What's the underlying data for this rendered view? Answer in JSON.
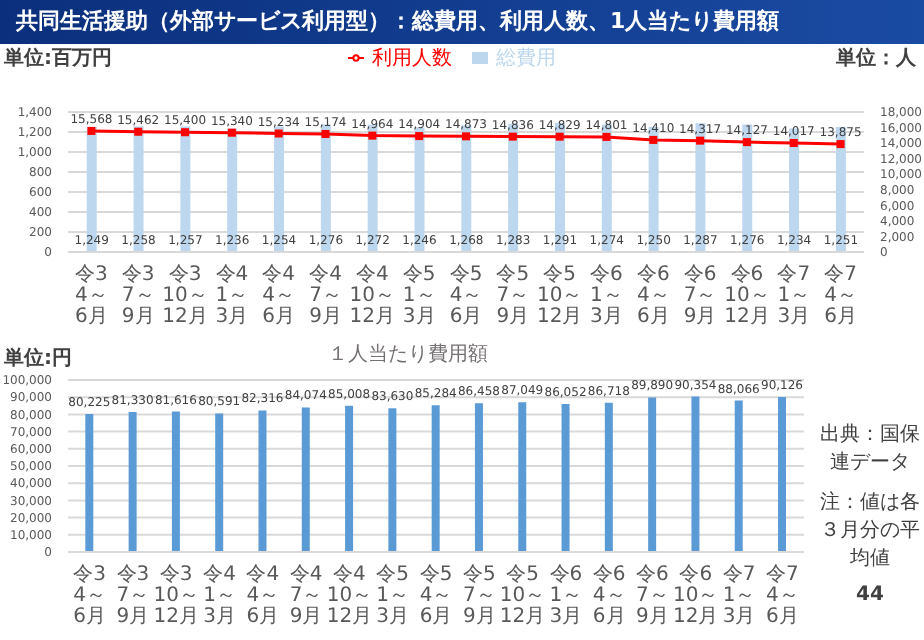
{
  "chart_data": [
    {
      "type": "bar",
      "title": "共同生活援助（外部サービス利用型）：総費用、利用人数、1人当たり費用額",
      "ylabel": "単位:百万円",
      "y2label": "単位：人",
      "categories": [
        "令3\n4～6月",
        "令3\n7～9月",
        "令3\n10～12月",
        "令4\n1～3月",
        "令4\n4～6月",
        "令4\n7～9月",
        "令4\n10～12月",
        "令5\n1～3月",
        "令5\n4～6月",
        "令5\n7～9月",
        "令5\n10～12月",
        "令6\n1～3月",
        "令6\n4～6月",
        "令6\n7～9月",
        "令6\n10～12月",
        "令7\n1～3月",
        "令7\n4～6月"
      ],
      "series": [
        {
          "name": "総費用",
          "color": "#bdd7ee",
          "values": [
            1249,
            1258,
            1257,
            1236,
            1254,
            1276,
            1272,
            1246,
            1268,
            1283,
            1291,
            1274,
            1250,
            1287,
            1276,
            1234,
            1251
          ],
          "value_labels": [
            "1,249",
            "1,258",
            "1,257",
            "1,236",
            "1,254",
            "1,276",
            "1,272",
            "1,246",
            "1,268",
            "1,283",
            "1,291",
            "1,274",
            "1,250",
            "1,287",
            "1,276",
            "1,234",
            "1,251"
          ]
        },
        {
          "name": "利用人数",
          "type": "line",
          "axis": "y2",
          "color": "#ff0000",
          "marker": "square",
          "values": [
            15568,
            15462,
            15400,
            15340,
            15234,
            15174,
            14964,
            14904,
            14873,
            14836,
            14829,
            14801,
            14410,
            14317,
            14127,
            14017,
            13875
          ],
          "value_labels": [
            "15,568",
            "15,462",
            "15,400",
            "15,340",
            "15,234",
            "15,174",
            "14,964",
            "14,904",
            "14,873",
            "14,836",
            "14,829",
            "14,801",
            "14,410",
            "14,317",
            "14,127",
            "14,017",
            "13,875"
          ]
        }
      ],
      "ylim": [
        0,
        1400
      ],
      "yticks": [
        0,
        200,
        400,
        600,
        800,
        {
          "value": 1000,
          "label": "1,000"
        },
        {
          "value": 1200,
          "label": "1,200"
        },
        {
          "value": 1400,
          "label": "1,400"
        }
      ],
      "y2lim": [
        0,
        18000
      ],
      "y2ticks": [
        0,
        {
          "value": 2000,
          "label": "2,000"
        },
        {
          "value": 4000,
          "label": "4,000"
        },
        {
          "value": 6000,
          "label": "6,000"
        },
        {
          "value": 8000,
          "label": "8,000"
        },
        {
          "value": 10000,
          "label": "10,000"
        },
        {
          "value": 12000,
          "label": "12,000"
        },
        {
          "value": 14000,
          "label": "14,000"
        },
        {
          "value": 16000,
          "label": "16,000"
        },
        {
          "value": 18000,
          "label": "18,000"
        }
      ],
      "grid": "y",
      "legend": "top"
    },
    {
      "type": "bar",
      "title": "１人当たり費用額",
      "ylabel": "単位:円",
      "categories": [
        "令3\n4～6月",
        "令3\n7～9月",
        "令3\n10～12月",
        "令4\n1～3月",
        "令4\n4～6月",
        "令4\n7～9月",
        "令4\n10～12月",
        "令5\n1～3月",
        "令5\n4～6月",
        "令5\n7～9月",
        "令5\n10～12月",
        "令6\n1～3月",
        "令6\n4～6月",
        "令6\n7～9月",
        "令6\n10～12月",
        "令7\n1～3月",
        "令7\n4～6月"
      ],
      "values": [
        80225,
        81330,
        81616,
        80591,
        82316,
        84074,
        85008,
        83630,
        85284,
        86458,
        87049,
        86052,
        86718,
        89890,
        90354,
        88066,
        90126
      ],
      "value_labels": [
        "80,225",
        "81,330",
        "81,616",
        "80,591",
        "82,316",
        "84,074",
        "85,008",
        "83,630",
        "85,284",
        "86,458",
        "87,049",
        "86,052",
        "86,718",
        "89,890",
        "90,354",
        "88,066",
        "90,126"
      ],
      "color": "#5b9bd5",
      "ylim": [
        0,
        100000
      ],
      "yticks": [
        0,
        {
          "value": 10000,
          "label": "10,000"
        },
        {
          "value": 20000,
          "label": "20,000"
        },
        {
          "value": 30000,
          "label": "30,000"
        },
        {
          "value": 40000,
          "label": "40,000"
        },
        {
          "value": 50000,
          "label": "50,000"
        },
        {
          "value": 60000,
          "label": "60,000"
        },
        {
          "value": 70000,
          "label": "70,000"
        },
        {
          "value": 80000,
          "label": "80,000"
        },
        {
          "value": 90000,
          "label": "90,000"
        },
        {
          "value": 100000,
          "label": "100,000"
        }
      ],
      "grid": "y",
      "annotations": [
        "出典：国保連データ",
        "注：値は各３月分の平均値",
        "44"
      ]
    }
  ]
}
